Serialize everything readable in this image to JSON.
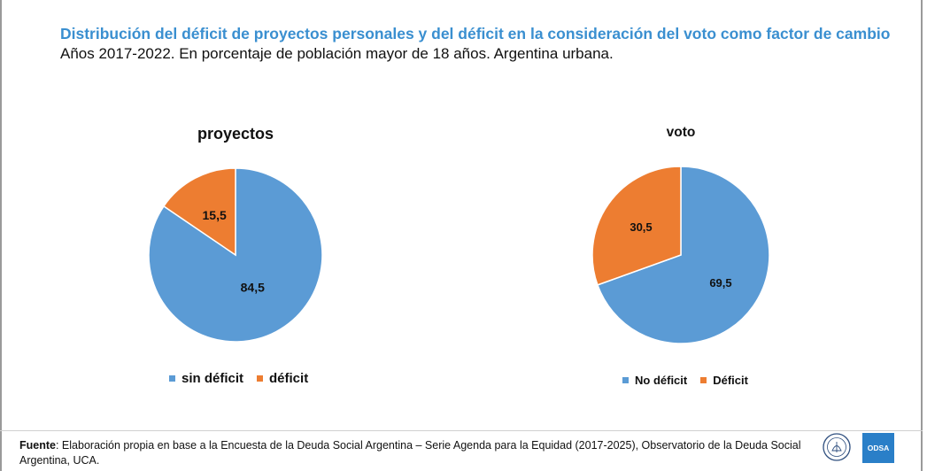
{
  "title": "Distribución del déficit de proyectos personales y del déficit en la consideración del voto como factor de cambio",
  "subtitle": "Años 2017-2022. En porcentaje de población mayor de 18 años. Argentina urbana.",
  "colors": {
    "blue": "#5b9bd5",
    "orange": "#ed7d31",
    "title_blue": "#3a8fd0"
  },
  "chart_data": [
    {
      "type": "pie",
      "title": "proyectos",
      "categories": [
        "sin déficit",
        "déficit"
      ],
      "values": [
        84.5,
        15.5
      ],
      "labels": [
        "84,5",
        "15,5"
      ],
      "colors": [
        "#5b9bd5",
        "#ed7d31"
      ],
      "legend_position": "bottom"
    },
    {
      "type": "pie",
      "title": "voto",
      "categories": [
        "No déficit",
        "Déficit"
      ],
      "values": [
        69.5,
        30.5
      ],
      "labels": [
        "69,5",
        "30,5"
      ],
      "colors": [
        "#5b9bd5",
        "#ed7d31"
      ],
      "legend_position": "bottom"
    }
  ],
  "source": {
    "label": "Fuente",
    "text": ": Elaboración propia en base a la Encuesta de la Deuda Social Argentina – Serie Agenda para la Equidad (2017-2025), Observatorio de la Deuda Social Argentina, UCA."
  },
  "logos": {
    "odsa": "ODSA",
    "seal": "uca-seal-icon"
  }
}
